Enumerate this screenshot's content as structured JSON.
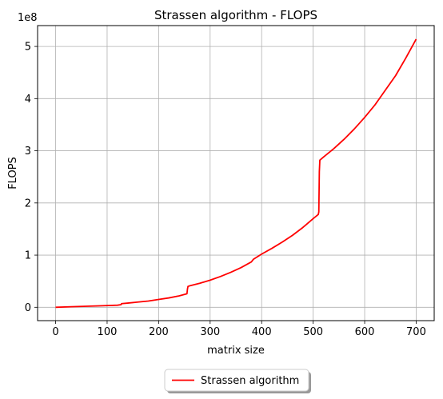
{
  "chart_data": {
    "type": "line",
    "title": "Strassen algorithm - FLOPS",
    "xlabel": "matrix size",
    "ylabel": "FLOPS",
    "y_offset_label": "1e8",
    "y_scale": 100000000,
    "xlim": [
      -35,
      735
    ],
    "ylim": [
      -0.256,
      5.4
    ],
    "x_ticks": [
      0,
      100,
      200,
      300,
      400,
      500,
      600,
      700
    ],
    "y_ticks": [
      0,
      1,
      2,
      3,
      4,
      5
    ],
    "grid": true,
    "legend_placement": "bottom-center-below",
    "series": [
      {
        "name": "Strassen algorithm",
        "color": "#ff0000",
        "x": [
          0,
          30,
          60,
          90,
          120,
          127,
          128,
          140,
          160,
          180,
          200,
          220,
          240,
          255,
          256,
          257,
          260,
          280,
          300,
          320,
          340,
          360,
          380,
          384,
          400,
          420,
          440,
          460,
          480,
          500,
          510,
          511,
          512,
          513,
          520,
          540,
          560,
          580,
          600,
          620,
          640,
          660,
          680,
          700
        ],
        "values": [
          0,
          0.01,
          0.02,
          0.03,
          0.04,
          0.05,
          0.07,
          0.08,
          0.1,
          0.12,
          0.15,
          0.18,
          0.22,
          0.26,
          0.35,
          0.4,
          0.41,
          0.46,
          0.52,
          0.59,
          0.67,
          0.76,
          0.87,
          0.92,
          1.02,
          1.13,
          1.25,
          1.38,
          1.53,
          1.7,
          1.78,
          1.83,
          2.6,
          2.82,
          2.88,
          3.04,
          3.22,
          3.42,
          3.64,
          3.88,
          4.16,
          4.44,
          4.78,
          5.14
        ]
      }
    ]
  }
}
